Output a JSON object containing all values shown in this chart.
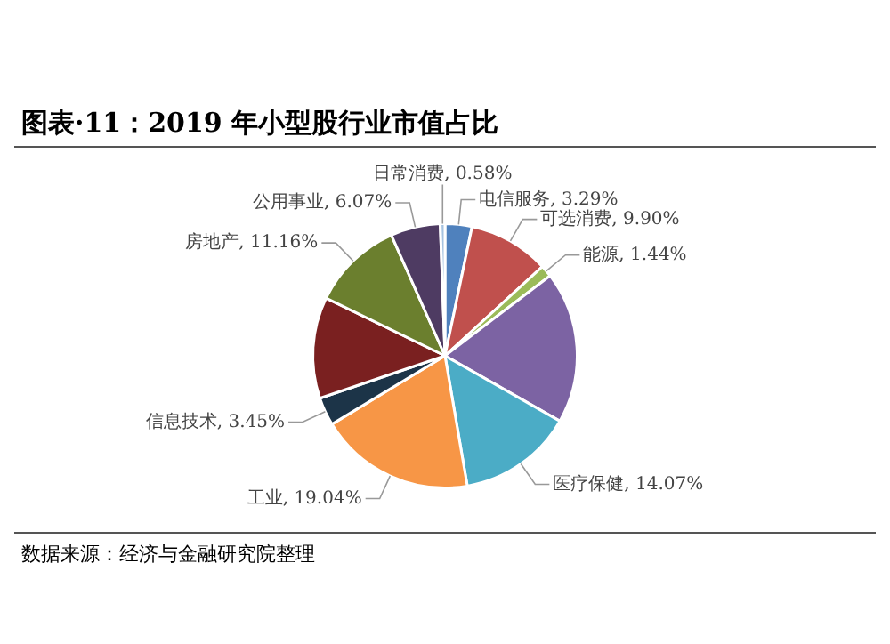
{
  "chart_data": {
    "type": "pie",
    "title": "图表·11：2019 年小型股行业市值占比",
    "categories": [
      "电信服务",
      "可选消费",
      "能源",
      null,
      "医疗保健",
      "工业",
      "信息技术",
      null,
      "房地产",
      "公用事业",
      "日常消费"
    ],
    "values": [
      3.29,
      9.9,
      1.44,
      18.6,
      14.07,
      19.04,
      3.45,
      12.4,
      11.16,
      6.07,
      0.58
    ],
    "value_labels": [
      "3.29%",
      "9.90%",
      "1.44%",
      null,
      "14.07%",
      "19.04%",
      "3.45%",
      null,
      "11.16%",
      "6.07%",
      "0.58%"
    ],
    "colors": [
      "#4f81bd",
      "#c0504d",
      "#9bbb59",
      "#7c63a3",
      "#4bacc6",
      "#f79646",
      "#1c3448",
      "#7a2020",
      "#6b7f2e",
      "#4e3b62",
      "#a6c3e0"
    ],
    "legend": false,
    "annotations": [
      "数据来源：经济与金融研究院整理"
    ]
  }
}
